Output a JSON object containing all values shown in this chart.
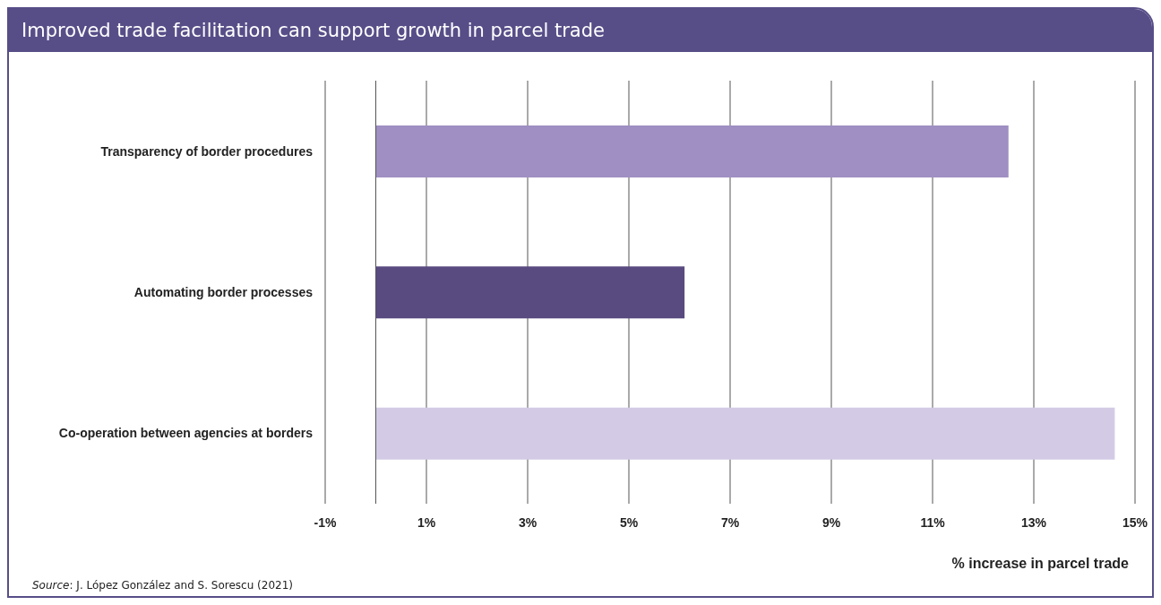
{
  "chart_data": {
    "type": "bar",
    "orientation": "horizontal",
    "title": "Improved trade facilitation can support growth in parcel trade",
    "categories": [
      "Transparency of border procedures",
      "Automating border processes",
      "Co-operation between agencies at borders"
    ],
    "values": [
      12.5,
      6.1,
      14.6
    ],
    "colors": [
      "#9f8fc2",
      "#594a80",
      "#d3cbe6"
    ],
    "xlim": [
      -1,
      15
    ],
    "xticks": [
      {
        "value": -1,
        "label": "-1%"
      },
      {
        "value": 1,
        "label": "1%"
      },
      {
        "value": 3,
        "label": "3%"
      },
      {
        "value": 5,
        "label": "5%"
      },
      {
        "value": 7,
        "label": "7%"
      },
      {
        "value": 9,
        "label": "9%"
      },
      {
        "value": 11,
        "label": "11%"
      },
      {
        "value": 13,
        "label": "13%"
      },
      {
        "value": 15,
        "label": "15%"
      }
    ],
    "xlabel": "% increase in parcel trade",
    "grid": "x",
    "legend": false,
    "annotations": [
      "Source: J. López González and S. Sorescu (2021)"
    ]
  }
}
